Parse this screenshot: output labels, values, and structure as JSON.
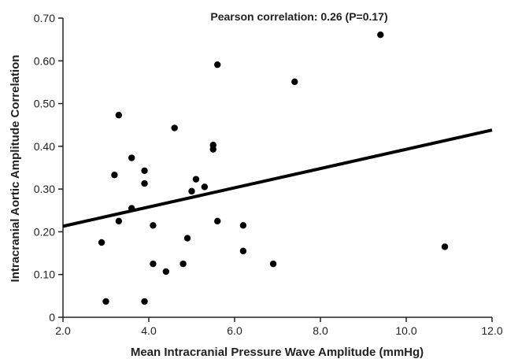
{
  "chart_data": {
    "type": "scatter",
    "annotation": "Pearson correlation: 0.26 (P=0.17)",
    "xlabel": "Mean Intracranial Pressure Wave Amplitude (mmHg)",
    "ylabel": "Intracranial Aortic Amplitude  Correlation",
    "xlim": [
      2.0,
      12.0
    ],
    "ylim": [
      0,
      0.7
    ],
    "x_ticks": [
      "2.0",
      "4.0",
      "6.0",
      "8.0",
      "10.0",
      "12.0"
    ],
    "y_ticks": [
      "0",
      "0.10",
      "0.20",
      "0.30",
      "0.40",
      "0.50",
      "0.60",
      "0.70"
    ],
    "grid": false,
    "points": [
      {
        "x": 2.9,
        "y": 0.175
      },
      {
        "x": 3.0,
        "y": 0.037
      },
      {
        "x": 3.2,
        "y": 0.333
      },
      {
        "x": 3.3,
        "y": 0.473
      },
      {
        "x": 3.3,
        "y": 0.225
      },
      {
        "x": 3.6,
        "y": 0.373
      },
      {
        "x": 3.6,
        "y": 0.255
      },
      {
        "x": 3.9,
        "y": 0.343
      },
      {
        "x": 3.9,
        "y": 0.313
      },
      {
        "x": 3.9,
        "y": 0.037
      },
      {
        "x": 4.1,
        "y": 0.215
      },
      {
        "x": 4.1,
        "y": 0.125
      },
      {
        "x": 4.4,
        "y": 0.107
      },
      {
        "x": 4.6,
        "y": 0.443
      },
      {
        "x": 4.8,
        "y": 0.125
      },
      {
        "x": 4.9,
        "y": 0.185
      },
      {
        "x": 5.0,
        "y": 0.295
      },
      {
        "x": 5.1,
        "y": 0.323
      },
      {
        "x": 5.3,
        "y": 0.305
      },
      {
        "x": 5.5,
        "y": 0.403
      },
      {
        "x": 5.5,
        "y": 0.393
      },
      {
        "x": 5.6,
        "y": 0.591
      },
      {
        "x": 5.6,
        "y": 0.225
      },
      {
        "x": 6.2,
        "y": 0.215
      },
      {
        "x": 6.2,
        "y": 0.155
      },
      {
        "x": 6.9,
        "y": 0.125
      },
      {
        "x": 7.4,
        "y": 0.551
      },
      {
        "x": 9.4,
        "y": 0.661
      },
      {
        "x": 10.9,
        "y": 0.165
      }
    ],
    "trendline": {
      "x": [
        2.0,
        12.0
      ],
      "y": [
        0.213,
        0.438
      ]
    },
    "colors": {
      "points": "#000000",
      "trendline": "#000000",
      "axes": "#222222"
    }
  }
}
